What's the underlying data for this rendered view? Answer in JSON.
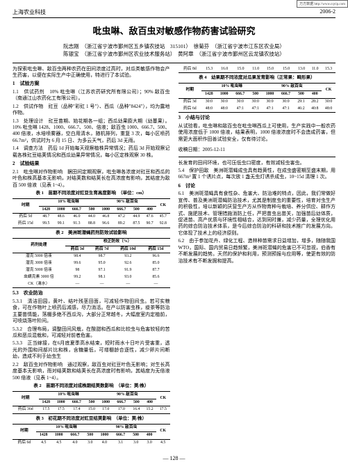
{
  "url_tag": "万方数据 http://www.cqvip.com",
  "header_left": "上海农业科技",
  "header_right": "2006-2",
  "title": "吡虫啉、敌百虫对敏感作物药害试验研究",
  "authors_line1": "阮志刚　（浙江省宁波市鄞州区五乡镇农技站　315101）　徐菊芬　（浙江省宁波市江东区农业局）",
  "authors_line2": "陈银宝　（浙江省宁波市鄞州区农业技术服务站）　黄阿章　（浙江省宁波市鄞州区云龙镇农技站）",
  "intro": "为探索吡虫啉、敌百虫两种农药在田间浓度过高时，对瓜类敏感作物会产生药害，以便在实际生产中正确使用，特进行了本试验。",
  "s1": "1　试验方案",
  "s1_1": "1.1　供试药剂　10% 吡虫啉（江苏农药研究所有限公司）；90% 敌百虫（南通江山农药化工有限公司）。",
  "s1_2": "1.2　供试作物　豇豆（品种\"彩豇 1 号\"）、西瓜（品种\"8424\"），均为露地作物。",
  "s1_3": "1.3　处理设计　豇豆苗期、始花期各一组；西瓜幼果膨大期（幼蔓果）。10% 吡虫啉 1428、1000、666.7、500、倍液；敌百虫 1000、666.7、500、400 倍液，水培喷雾器，空白用清水，随机排列，重复 3 次，每小区喷药 66.7m²，供试时为 6 月 15 日、为多云天气，药后 3d 无雨。",
  "s1_4": "1.4　调查方法　药后 1d 开始每天观察植株异常情况；药后 3d 开始观察记载各株豇豆结荚情况和西瓜幼果异常情况，每小区定株观察 30 株。",
  "s2": "2　试验结果",
  "s2_1": "2.1　吡虫啉对作物影响　据田间定期观察，吡虫啉各浓度对豇豆和西瓜的叶色和株高基本无影响，对结荚数和结荚长在高浓度有影响，其结度为敌百 500 倍液（见表 1~4）。",
  "t1_title": "表 1　苗期不同浓度对豇豆生育高度影响　（单位：cm）",
  "t1": {
    "head1": [
      "时期",
      "10% 吡虫啉",
      "90% 敌百虫",
      "CK"
    ],
    "head2": [
      "",
      "1428",
      "1000",
      "666.7",
      "500",
      "1000",
      "666.7",
      "500",
      "400",
      ""
    ],
    "rows": [
      [
        "药后 5d",
        "48.7",
        "48.6",
        "46.0",
        "44.0",
        "46.8",
        "47.2",
        "44.9",
        "47.6",
        "45.7"
      ],
      [
        "药后 15d",
        "99.5",
        "99.1",
        "91.3",
        "88.8",
        "96.6",
        "89.2",
        "87.5",
        "90.7",
        "92.8"
      ]
    ]
  },
  "s2_2": "2.2　敌百虫对作物影响　通过观察，敌百虫对豇豆叶色无影响；对生长高度基本无影响，而对结荚数和结荚长在高浓度时有影响，其结度为无倍液 500 倍液（见表 1~4）。",
  "t2_title": "表 2　苗期不同浓度对成株期结荚数影响　（单位：荚/株）",
  "t2": {
    "head1": [
      "时期",
      "10% 吡虫啉",
      "90% 敌百虫",
      "CK"
    ],
    "head2": [
      "",
      "1428",
      "1000",
      "666.7",
      "500",
      "1000",
      "666.7",
      "500",
      "400",
      ""
    ],
    "rows": [
      [
        "药后 36d",
        "17.5",
        "17.5",
        "17.4",
        "15.0",
        "17.0",
        "17.0",
        "16.4",
        "15.2",
        "17.5"
      ]
    ]
  },
  "t3_title": "表 3　初花期不同浓度对豇豆结荚影响　（单位：荚/株）",
  "t3": {
    "head1": [
      "时期",
      "10% 吡虫啉",
      "90% 敌百虫",
      "CK"
    ],
    "head2": [
      "",
      "1428",
      "1000",
      "666.7",
      "500",
      "1000",
      "666.7",
      "500",
      "400",
      ""
    ],
    "rows": [
      [
        "药后 6d",
        "4.5",
        "4.5",
        "4.0",
        "3.0",
        "4.0",
        "3.1",
        "3.0",
        "3.0",
        "4.5"
      ],
      [
        "药后 8d",
        "15.3",
        "16.0",
        "15.0",
        "11.0",
        "15.0",
        "15.0",
        "13.0",
        "11.0",
        "15.3"
      ]
    ]
  },
  "t4_title": "表 4　幼果期不同浓度对瓜果发育影响（正常果：畸形果）",
  "t4": {
    "head1": [
      "时期",
      "10% 吡虫啉",
      "90% 敌百虫",
      "CK"
    ],
    "head2": [
      "",
      "1428",
      "1000",
      "666.7",
      "500",
      "1000",
      "666.7",
      "500",
      "400",
      ""
    ],
    "rows": [
      [
        "药后 3d",
        "30:0",
        "30:0",
        "30:0",
        "30:0",
        "30:0",
        "30:0",
        "29:1",
        "28:2",
        "30:0"
      ],
      [
        "药后 6d",
        "48:0",
        "48:0",
        "47:1",
        "47:1",
        "47:1",
        "47:1",
        "46:2",
        "40:8",
        "48:0"
      ]
    ]
  },
  "s3": "3　小结与讨论",
  "s3_p": "从试验看，吡虫啉和敌百虫在吡虫啉西瓜上可使用，生产实践中一般农药使用浓度低于 1000 倍液，结果表明，1000 倍液浓度时不会造成药害，但需更大面积作田善试验安全，仅有待讨论。",
  "date": "收稿日期：2005-12-11",
  "right_p1": "长发育的田间环境，也可压低虫口密度，有效减轻虫害虫。",
  "s5_4": "5.4　保护田敌　美洲斑潜蝇成虫具有趋黄性，在成虫盛密期至盛末期，用 667m² 置 1 个诱片点，每次放 1 盏无虫灯诱杀成虫，10~15d 清理 1 次。",
  "s6": "6　讨论",
  "s6_1": "6.1　美洲斑潜蝇具有食性杂、危害大、防治难的特点，因此，我们常做好宣传、普及美洲斑潜蝇防治技术，尤其是制度虫的重要性，培育对虫生产的积极性，培以新颖的厌营生产方从作物育种与栽培、养分供应、耕作方式、施肥技术、管理措施消防上任，严把苗虫出苗关，加强苗后幼体质，促进苗、高产优质与环境性相结合，达到同时兼，减少药量，全理优化用药的综合防治技术体系，是今后综合防治的科研和技术推广的发展方向。它体现了技术上的经济原则。",
  "s6_2": "6.2　由于参加花卉、绿化工程、造林种苗需求日益增加，增多，随随我国 WTO，国际、国内贸易日趋频繁，美洲斑潜蝇的危害已不可忽视，伯香有不断发展的趋势。天然的保护和利用，预测预报与应用等，使更有效的防治技术有不断发掘和提高。",
  "t_drug_title": "表 2　美洲斑潜蝇药剂防效试验影响",
  "t_drug": {
    "head1": [
      "药剂处理",
      "校正防效（%）"
    ],
    "head2": [
      "",
      "药后 3d",
      "药后 7d",
      "药后 10d",
      "药后 15d"
    ],
    "rows": [
      [
        "潜克 5000 倍液",
        "98.4",
        "98.7",
        "93.2",
        "96.6"
      ],
      [
        "潜克 3000 倍液",
        "99.6",
        "95.0",
        "92.6",
        "85.0"
      ],
      [
        "潜克 5000 倍液",
        "98",
        "97.1",
        "91.9",
        "87.7"
      ],
      [
        "虫螨克素 3000 倍",
        "99.2",
        "98.1",
        "93.0",
        "85.6"
      ],
      [
        "CK（清水）",
        "—",
        "—",
        "—",
        "—"
      ]
    ]
  },
  "s5_3_head": "5.3　农业防治",
  "s5_3_1": "5.3.1　清洁田园，黄叶、结叶残茎田面，可减轻作物田间虫。若可实粮食，可在作物叶上喷药后减感，尽力消活。在产以防害虫株，疫茶等防治主要苗情能，落棚多绝不西瓜沟，大部分正常越冬，大幅度室内定植前，可喷烧落叶阶间。",
  "s5_3_2": "5.3.2　合理布局，调整田间风栽，在酸甜和西瓜和比较虫与危害较轻的苦瓜和恶瓜混栽和，可减轻对前者危害。",
  "s5_3_3": "5.3.3　正当嫁接，在6月底夏季高水结束，短时雨水十日叶片受害重，透光的外围和间部片比和株，含糖量低，可增棚龄合逐性，减少卵片间断幼，造成不利于幼虫生",
  "page_no": "— 128 —"
}
